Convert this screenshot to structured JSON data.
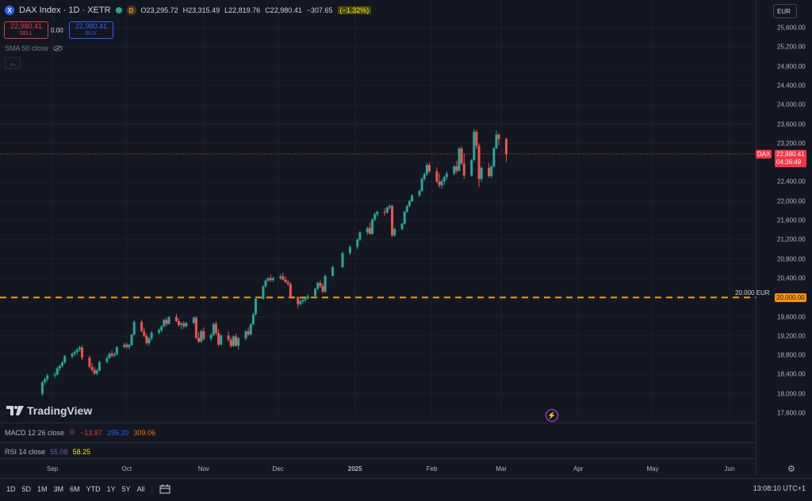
{
  "symbol": {
    "title": "DAX Index · 1D · XETR",
    "logo_letter": "X",
    "d_badge": "D",
    "open": "O23,295.72",
    "high": "H23,315.49",
    "low": "L22,819.76",
    "close": "C22,980.41",
    "change": "−307.65",
    "change_pct": "(−1.32%)"
  },
  "trade": {
    "sell_price": "22,980.41",
    "sell_label": "SELL",
    "spread": "0.00",
    "buy_price": "22,980.41",
    "buy_label": "BUY"
  },
  "indicators": {
    "sma_label": "SMA 50 close",
    "macd_label": "MACD 12 26 close",
    "macd_values": [
      "−13.87",
      "295.20",
      "309.06"
    ],
    "rsi_label": "RSI 14 close",
    "rsi_values": [
      "55.08",
      "58.25"
    ]
  },
  "currency": "EUR",
  "price_tags": {
    "dax_label": "DAX",
    "dax_price": "22,980.41",
    "dax_countdown": "04:36:49",
    "line_label": "20.000 EUR",
    "line_price": "20,000.00"
  },
  "logo_text": "TradingView",
  "timeframes": [
    "1D",
    "5D",
    "1M",
    "3M",
    "6M",
    "YTD",
    "1Y",
    "5Y",
    "All"
  ],
  "clock": "13:08:10 UTC+1",
  "colors": {
    "up": "#26a69a",
    "down": "#ef5350",
    "line": "#ff9800",
    "bg": "#131722"
  },
  "chart_data": {
    "type": "candlestick",
    "y_ticks": [
      "25,600.00",
      "25,200.00",
      "24,800.00",
      "24,400.00",
      "24,000.00",
      "23,600.00",
      "23,200.00",
      "22,800.00",
      "22,400.00",
      "22,000.00",
      "21,600.00",
      "21,200.00",
      "20,800.00",
      "20,400.00",
      "20,000.00",
      "19,600.00",
      "19,200.00",
      "18,800.00",
      "18,400.00",
      "18,000.00",
      "17,600.00"
    ],
    "y_tick_values": [
      25600,
      25200,
      24800,
      24400,
      24000,
      23600,
      23200,
      22800,
      22400,
      22000,
      21600,
      21200,
      20800,
      20400,
      20000,
      19600,
      19200,
      18800,
      18400,
      18000,
      17600
    ],
    "ylim": [
      17500,
      25900
    ],
    "x_labels": [
      "Sep",
      "Oct",
      "Nov",
      "Dec",
      "2025",
      "Feb",
      "Mar",
      "Apr",
      "May",
      "Jun"
    ],
    "x_label_dates": [
      "2024-09-01",
      "2024-10-01",
      "2024-11-01",
      "2024-12-01",
      "2025-01-01",
      "2025-02-01",
      "2025-03-01",
      "2025-04-01",
      "2025-05-01",
      "2025-06-01"
    ],
    "horizontal_line": 20000,
    "last_price": 22980.41,
    "series_start": "2024-08-28",
    "candles": [
      [
        18000,
        18270,
        17960,
        18240
      ],
      [
        18240,
        18340,
        18180,
        18300
      ],
      [
        18300,
        18420,
        18250,
        18380
      ],
      [
        18380,
        18450,
        18320,
        18400
      ],
      [
        18400,
        18560,
        18380,
        18530
      ],
      [
        18530,
        18600,
        18470,
        18580
      ],
      [
        18580,
        18680,
        18540,
        18650
      ],
      [
        18650,
        18800,
        18620,
        18780
      ],
      [
        18780,
        18860,
        18730,
        18830
      ],
      [
        18830,
        18900,
        18780,
        18870
      ],
      [
        18870,
        18950,
        18810,
        18920
      ],
      [
        18920,
        19000,
        18870,
        18960
      ],
      [
        18960,
        19010,
        18700,
        18750
      ],
      [
        18750,
        18790,
        18530,
        18560
      ],
      [
        18560,
        18640,
        18450,
        18500
      ],
      [
        18500,
        18560,
        18390,
        18420
      ],
      [
        18420,
        18520,
        18380,
        18480
      ],
      [
        18480,
        18680,
        18460,
        18660
      ],
      [
        18660,
        18780,
        18630,
        18740
      ],
      [
        18740,
        18860,
        18720,
        18830
      ],
      [
        18830,
        18900,
        18760,
        18790
      ],
      [
        18790,
        18860,
        18760,
        18820
      ],
      [
        18820,
        18990,
        18800,
        18970
      ],
      [
        18970,
        19060,
        18940,
        19020
      ],
      [
        19020,
        19060,
        18930,
        18970
      ],
      [
        18970,
        19040,
        18920,
        19010
      ],
      [
        19010,
        19250,
        18990,
        19230
      ],
      [
        19230,
        19520,
        19210,
        19490
      ],
      [
        19490,
        19530,
        19280,
        19300
      ],
      [
        19300,
        19380,
        19170,
        19200
      ],
      [
        19200,
        19250,
        19010,
        19050
      ],
      [
        19050,
        19180,
        18990,
        19150
      ],
      [
        19150,
        19300,
        19100,
        19270
      ],
      [
        19270,
        19360,
        19230,
        19320
      ],
      [
        19320,
        19420,
        19280,
        19400
      ],
      [
        19400,
        19560,
        19380,
        19530
      ],
      [
        19530,
        19580,
        19400,
        19450
      ],
      [
        19450,
        19610,
        19440,
        19590
      ],
      [
        19590,
        19660,
        19480,
        19510
      ],
      [
        19510,
        19560,
        19390,
        19430
      ],
      [
        19430,
        19490,
        19330,
        19460
      ],
      [
        19460,
        19510,
        19350,
        19400
      ],
      [
        19400,
        19490,
        19370,
        19470
      ],
      [
        19470,
        19600,
        19450,
        19580
      ],
      [
        19580,
        19610,
        19130,
        19160
      ],
      [
        19160,
        19280,
        19050,
        19080
      ],
      [
        19080,
        19330,
        19060,
        19300
      ],
      [
        19300,
        19380,
        19110,
        19140
      ],
      [
        19140,
        19260,
        19100,
        19220
      ],
      [
        19220,
        19480,
        19200,
        19450
      ],
      [
        19450,
        19500,
        19220,
        19260
      ],
      [
        19260,
        19340,
        18980,
        19020
      ],
      [
        19020,
        19230,
        19000,
        19210
      ],
      [
        19210,
        19290,
        19080,
        19120
      ],
      [
        19120,
        19180,
        18960,
        18990
      ],
      [
        18990,
        19220,
        18970,
        19190
      ],
      [
        19190,
        19250,
        18970,
        19000
      ],
      [
        19000,
        19180,
        18920,
        19150
      ],
      [
        19150,
        19320,
        19110,
        19300
      ],
      [
        19300,
        19380,
        19190,
        19230
      ],
      [
        19230,
        19470,
        19210,
        19440
      ],
      [
        19440,
        19680,
        19420,
        19650
      ],
      [
        19650,
        20000,
        19630,
        19970
      ],
      [
        19970,
        20250,
        19950,
        20230
      ],
      [
        20230,
        20380,
        20200,
        20350
      ],
      [
        20350,
        20420,
        20330,
        20400
      ],
      [
        20400,
        20470,
        20320,
        20360
      ],
      [
        20360,
        20430,
        20320,
        20400
      ],
      [
        20400,
        20480,
        20360,
        20440
      ],
      [
        20440,
        20510,
        20350,
        20370
      ],
      [
        20370,
        20430,
        20300,
        20320
      ],
      [
        20320,
        20370,
        20240,
        20280
      ],
      [
        20280,
        20320,
        19990,
        20010
      ],
      [
        20010,
        20020,
        19770,
        19860
      ],
      [
        19860,
        19960,
        19830,
        19920
      ],
      [
        19920,
        19990,
        19870,
        19950
      ],
      [
        19950,
        20020,
        19900,
        19980
      ],
      [
        19980,
        20070,
        19960,
        20030
      ],
      [
        20030,
        20200,
        20000,
        20180
      ],
      [
        20180,
        20330,
        20150,
        20300
      ],
      [
        20300,
        20360,
        20200,
        20240
      ],
      [
        20240,
        20300,
        20080,
        20120
      ],
      [
        20120,
        20470,
        20100,
        20450
      ],
      [
        20450,
        20650,
        20430,
        20630
      ],
      [
        20630,
        20950,
        20610,
        20920
      ],
      [
        20920,
        21080,
        20880,
        21050
      ],
      [
        21050,
        21230,
        21000,
        21200
      ],
      [
        21200,
        21380,
        21170,
        21350
      ],
      [
        21350,
        21470,
        21300,
        21440
      ],
      [
        21440,
        21560,
        21300,
        21320
      ],
      [
        21320,
        21640,
        21300,
        21620
      ],
      [
        21620,
        21760,
        21580,
        21730
      ],
      [
        21730,
        21800,
        21680,
        21780
      ],
      [
        21780,
        21850,
        21700,
        21760
      ],
      [
        21760,
        21890,
        21740,
        21870
      ],
      [
        21870,
        21930,
        21820,
        21900
      ],
      [
        21900,
        21920,
        21250,
        21290
      ],
      [
        21290,
        21450,
        21260,
        21420
      ],
      [
        21420,
        21550,
        21390,
        21530
      ],
      [
        21530,
        21800,
        21510,
        21780
      ],
      [
        21780,
        21920,
        21760,
        21900
      ],
      [
        21900,
        22030,
        21870,
        22000
      ],
      [
        22000,
        22140,
        21980,
        22120
      ],
      [
        22120,
        22240,
        22080,
        22210
      ],
      [
        22210,
        22490,
        22190,
        22460
      ],
      [
        22460,
        22590,
        22420,
        22560
      ],
      [
        22560,
        22780,
        22520,
        22750
      ],
      [
        22750,
        22800,
        22590,
        22620
      ],
      [
        22620,
        22700,
        22370,
        22410
      ],
      [
        22410,
        22580,
        22280,
        22330
      ],
      [
        22330,
        22450,
        22260,
        22410
      ],
      [
        22410,
        22530,
        22330,
        22500
      ],
      [
        22500,
        22620,
        22440,
        22570
      ],
      [
        22570,
        22750,
        22530,
        22720
      ],
      [
        22720,
        22840,
        22580,
        22630
      ],
      [
        22630,
        23120,
        22610,
        23090
      ],
      [
        23090,
        23140,
        22750,
        22780
      ],
      [
        22780,
        22990,
        22460,
        22530
      ],
      [
        22530,
        22880,
        22510,
        22850
      ],
      [
        22850,
        23490,
        22830,
        23440
      ],
      [
        23440,
        23480,
        23080,
        23150
      ],
      [
        23150,
        23200,
        22290,
        22460
      ],
      [
        22460,
        22720,
        22400,
        22690
      ],
      [
        22690,
        22790,
        22490,
        22520
      ],
      [
        22520,
        22750,
        22470,
        22720
      ],
      [
        22720,
        23120,
        22700,
        23100
      ],
      [
        23100,
        23470,
        23080,
        23380
      ],
      [
        23380,
        23410,
        23160,
        23290
      ],
      [
        23295.72,
        23315.49,
        22819.76,
        22980.41
      ]
    ]
  }
}
